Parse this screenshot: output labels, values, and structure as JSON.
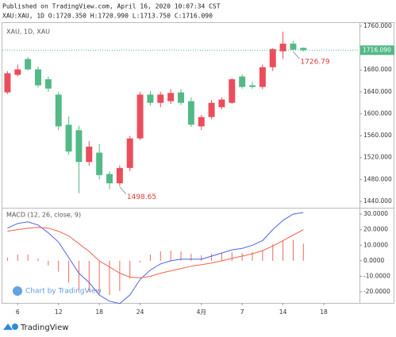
{
  "header": {
    "published": "Published on TradingView.com, April 16, 2020 10:07:34 CST",
    "ohlc": "XAU:XAU, 1D O:1720.350 H:1720.990 L:1713.750 C:1716.090"
  },
  "watermark": "Chart by TradingView",
  "footer": "TradingView",
  "chart_data": [
    {
      "type": "candlestick",
      "title": "XAU, 1D, XAU",
      "up_color": "#eb4d5c",
      "down_color": "#53b987",
      "open": [
        1639,
        1671,
        1700,
        1681,
        1663,
        1635,
        1580,
        1570,
        1512,
        1529,
        1490,
        1473,
        1501,
        1555,
        1635,
        1620,
        1623,
        1639,
        1623,
        1577,
        1594,
        1612,
        1620,
        1668,
        1652,
        1649,
        1685,
        1714,
        1728,
        1720.35
      ],
      "high": [
        1678,
        1690,
        1704,
        1686,
        1668,
        1640,
        1595,
        1578,
        1550,
        1545,
        1495,
        1506,
        1560,
        1640,
        1642,
        1640,
        1645,
        1645,
        1630,
        1598,
        1625,
        1630,
        1665,
        1672,
        1658,
        1690,
        1720,
        1750,
        1733,
        1720.99
      ],
      "low": [
        1636,
        1668,
        1679,
        1648,
        1640,
        1570,
        1525,
        1455,
        1505,
        1480,
        1462,
        1468,
        1495,
        1552,
        1615,
        1612,
        1618,
        1616,
        1576,
        1570,
        1590,
        1608,
        1618,
        1646,
        1646,
        1645,
        1678,
        1700,
        1715,
        1713.75
      ],
      "close": [
        1674,
        1681,
        1681,
        1652,
        1646,
        1577,
        1531,
        1512,
        1540,
        1488,
        1473,
        1501,
        1555,
        1635,
        1620,
        1635,
        1638,
        1620,
        1580,
        1594,
        1620,
        1626,
        1663,
        1649,
        1649,
        1685,
        1718,
        1728,
        1717,
        1716.09
      ],
      "xlim": [
        -0.5,
        34.5
      ],
      "xticks": [
        {
          "value": 1,
          "label": "6"
        },
        {
          "value": 5,
          "label": "12"
        },
        {
          "value": 9,
          "label": "18"
        },
        {
          "value": 13,
          "label": "24"
        },
        {
          "value": 19,
          "label": "4月"
        },
        {
          "value": 23,
          "label": "7"
        },
        {
          "value": 27,
          "label": "14"
        },
        {
          "value": 31,
          "label": "18"
        }
      ],
      "ylim": [
        1428.4,
        1767.2
      ],
      "yticks": [
        {
          "value": 1760,
          "label": "1760.000"
        },
        {
          "value": 1680,
          "label": "1680.000"
        },
        {
          "value": 1640,
          "label": "1640.000"
        },
        {
          "value": 1600,
          "label": "1600.000"
        },
        {
          "value": 1560,
          "label": "1560.000"
        },
        {
          "value": 1520,
          "label": "1520.000"
        },
        {
          "value": 1480,
          "label": "1480.000"
        },
        {
          "value": 1440,
          "label": "1440.000"
        }
      ],
      "last_price": {
        "value": 1716.09,
        "label": "1716.090",
        "color": "#53b987"
      },
      "annotations": [
        {
          "text": "1726.79",
          "index": 28,
          "color": "#d93a3a"
        },
        {
          "text": "1498.65",
          "index": 11,
          "color": "#d93a3a"
        }
      ],
      "grid": false
    },
    {
      "type": "macd",
      "title": "MACD (12, 26, close, 9)",
      "series": [
        {
          "color": "#4a62e8",
          "values": [
            21,
            24,
            25,
            23,
            18,
            12,
            2,
            -8,
            -14,
            -22,
            -26,
            -27.5,
            -22,
            -12,
            -6,
            -2,
            0,
            1,
            1,
            1,
            3,
            5,
            7,
            8,
            10,
            13,
            20,
            26,
            30,
            31
          ]
        },
        {
          "color": "#f0624f",
          "values": [
            19,
            20,
            21,
            21.5,
            21,
            19,
            16,
            11,
            6,
            0,
            -4,
            -8,
            -10.5,
            -11,
            -10,
            -8,
            -6.5,
            -5,
            -3.5,
            -2.5,
            -1.5,
            0,
            1.5,
            3,
            4.5,
            6.5,
            9.5,
            13,
            16.5,
            20
          ]
        }
      ],
      "histogram": {
        "color": "#ef6a5e",
        "values": [
          2,
          4,
          4,
          1.5,
          -3,
          -7,
          -14,
          -19,
          -20,
          -22,
          -22,
          -19.5,
          -11.5,
          -1,
          4,
          6,
          6.5,
          6,
          4.5,
          3.5,
          4.5,
          5,
          5.5,
          5,
          5.5,
          6.5,
          10.5,
          13,
          13.5,
          11
        ]
      },
      "ylim": [
        -27.1,
        34.1
      ],
      "yticks": [
        {
          "value": 30,
          "label": "30.0000"
        },
        {
          "value": 20,
          "label": "20.0000"
        },
        {
          "value": 10,
          "label": "10.0000"
        },
        {
          "value": 0,
          "label": "0.0000"
        },
        {
          "value": -10,
          "label": "-10.0000"
        },
        {
          "value": -20,
          "label": "-20.0000"
        }
      ],
      "grid": false
    }
  ]
}
